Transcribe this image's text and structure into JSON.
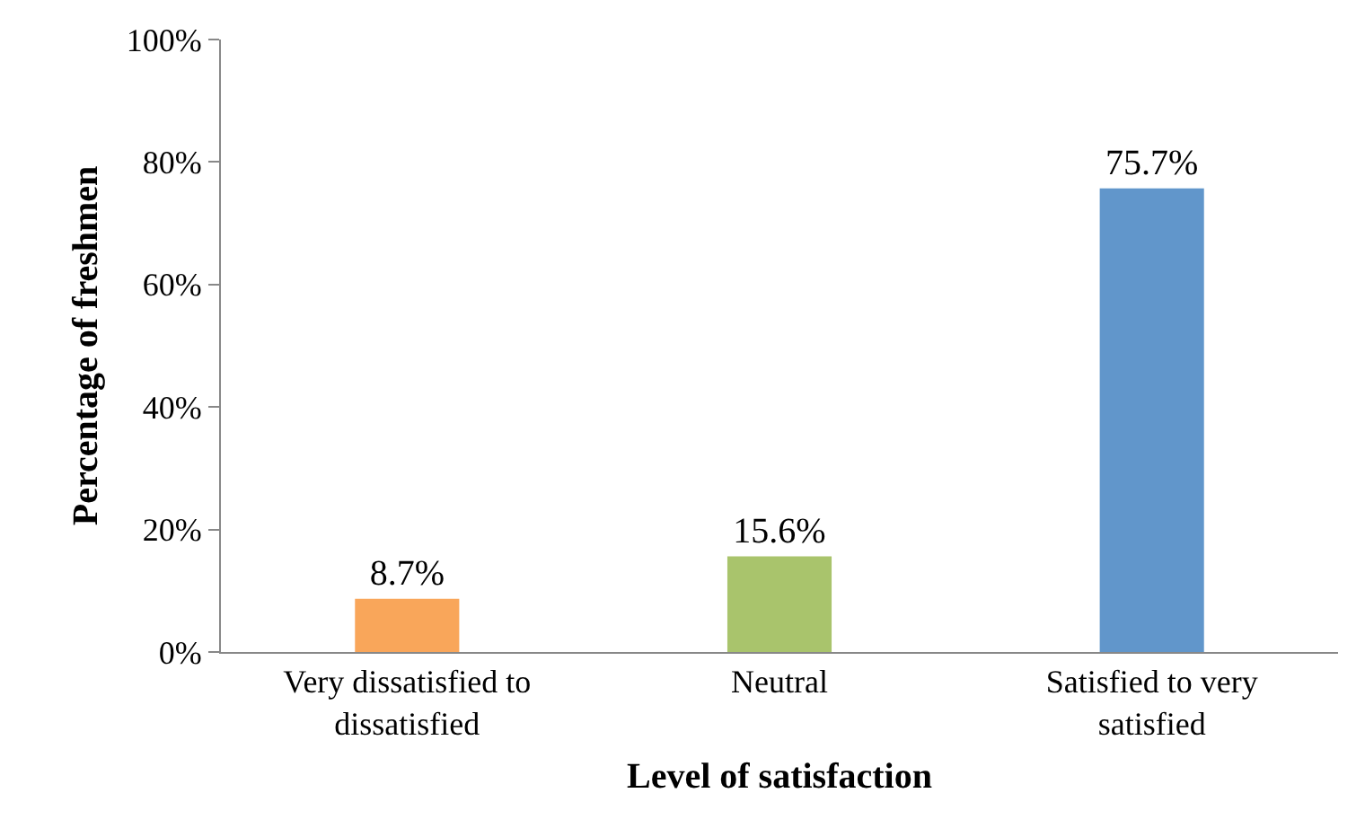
{
  "chart_data": {
    "type": "bar",
    "xlabel": "Level of satisfaction",
    "ylabel": "Percentage of freshmen",
    "categories": [
      "Very dissatisfied to dissatisfied",
      "Neutral",
      "Satisfied to very satisfied"
    ],
    "values": [
      8.7,
      15.6,
      75.7
    ],
    "colors": [
      "#f9a65a",
      "#a9c46c",
      "#6196cb"
    ],
    "value_labels": [
      "8.7%",
      "15.6%",
      "75.7%"
    ],
    "ylim": [
      0,
      100
    ],
    "yticks": [
      {
        "value": 0,
        "label": "0%"
      },
      {
        "value": 20,
        "label": "20%"
      },
      {
        "value": 40,
        "label": "40%"
      },
      {
        "value": 60,
        "label": "60%"
      },
      {
        "value": 80,
        "label": "80%"
      },
      {
        "value": 100,
        "label": "100%"
      }
    ],
    "legend": false
  }
}
